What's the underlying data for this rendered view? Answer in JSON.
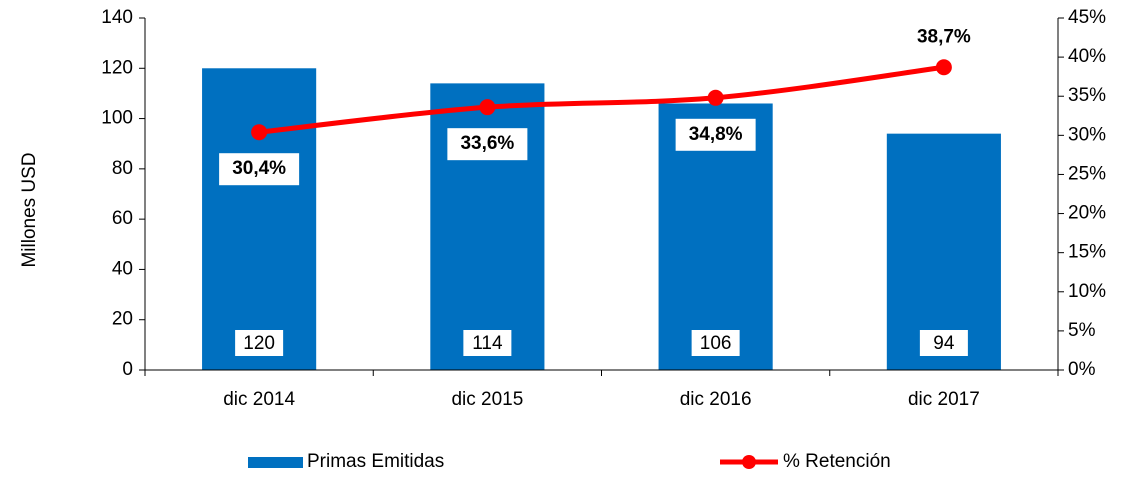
{
  "chart_data": {
    "type": "bar",
    "categories": [
      "dic 2014",
      "dic 2015",
      "dic 2016",
      "dic 2017"
    ],
    "ylabel": "Millones  USD",
    "ylim": [
      0,
      140
    ],
    "yticks": [
      0,
      20,
      40,
      60,
      80,
      100,
      120,
      140
    ],
    "y2lim": [
      0,
      45
    ],
    "y2ticks": [
      {
        "value": 0,
        "label": "0%"
      },
      {
        "value": 5,
        "label": "5%"
      },
      {
        "value": 10,
        "label": "10%"
      },
      {
        "value": 15,
        "label": "15%"
      },
      {
        "value": 20,
        "label": "20%"
      },
      {
        "value": 25,
        "label": "25%"
      },
      {
        "value": 30,
        "label": "30%"
      },
      {
        "value": 35,
        "label": "35%"
      },
      {
        "value": 40,
        "label": "40%"
      },
      {
        "value": 45,
        "label": "45%"
      }
    ],
    "legend": "bottom",
    "series": [
      {
        "name": "Primas Emitidas",
        "type": "bar",
        "color": "#0070c0",
        "values": [
          120,
          114,
          106,
          94
        ]
      },
      {
        "name": "% Retención",
        "type": "line",
        "axis": "y2",
        "color": "#ff0000",
        "values": [
          30.4,
          33.6,
          34.8,
          38.7
        ],
        "value_labels": [
          "30,4%",
          "33,6%",
          "34,8%",
          "38,7%"
        ]
      }
    ]
  }
}
